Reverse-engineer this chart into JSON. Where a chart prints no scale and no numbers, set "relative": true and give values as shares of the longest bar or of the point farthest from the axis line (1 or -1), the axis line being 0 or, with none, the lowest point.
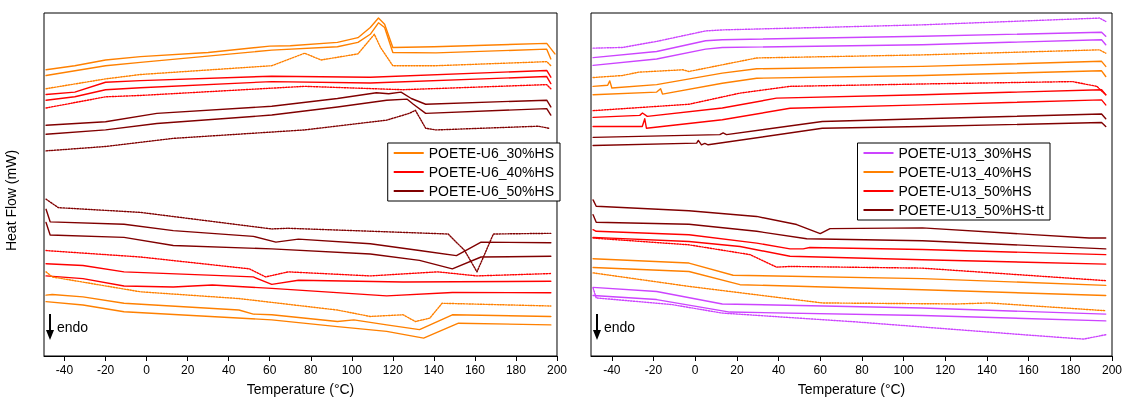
{
  "chart_data": [
    {
      "type": "line",
      "relative": true,
      "xlabel": "Temperature (°C)",
      "ylabel": "Heat Flow (mW)",
      "xlim": [
        -50,
        200
      ],
      "xticks": [
        -40,
        -20,
        0,
        20,
        40,
        60,
        80,
        100,
        120,
        140,
        160,
        180,
        200
      ],
      "legend": "right",
      "grid": false,
      "annotations": [
        "endo"
      ],
      "series": [
        {
          "name": "POETE-U6_30%HS",
          "color": "#ff8000",
          "line_style": "solid",
          "x": [
            -49,
            -35,
            -20,
            -3,
            30,
            60,
            70,
            93,
            103,
            109,
            113,
            116,
            120,
            140,
            195,
            199
          ],
          "values": [
            0.847,
            0.859,
            0.876,
            0.886,
            0.898,
            0.917,
            0.918,
            0.928,
            0.942,
            0.972,
            1.0,
            0.982,
            0.913,
            0.915,
            0.925,
            0.894
          ]
        },
        {
          "color": "#ff8000",
          "line_style": "solid",
          "x": [
            -49,
            -20,
            -3,
            61,
            93,
            103,
            109,
            113,
            116,
            120,
            141,
            195,
            197
          ],
          "values": [
            0.83,
            0.859,
            0.869,
            0.905,
            0.915,
            0.928,
            0.952,
            0.986,
            0.972,
            0.898,
            0.897,
            0.908,
            0.879
          ]
        },
        {
          "color": "#ff8000",
          "line_style": "dotted",
          "x": [
            -49,
            -20,
            -3,
            61,
            77,
            85,
            103,
            111,
            114,
            120,
            141,
            195,
            197
          ],
          "values": [
            0.791,
            0.82,
            0.833,
            0.859,
            0.896,
            0.876,
            0.894,
            0.952,
            0.913,
            0.859,
            0.859,
            0.871,
            0.859
          ]
        },
        {
          "name": "POETE-U6_40%HS",
          "color": "#ff0000",
          "line_style": "solid",
          "x": [
            -49,
            -35,
            -20,
            -3,
            61,
            109,
            195,
            197
          ],
          "values": [
            0.774,
            0.781,
            0.81,
            0.815,
            0.828,
            0.825,
            0.845,
            0.825
          ]
        },
        {
          "color": "#ff0000",
          "line_style": "solid",
          "x": [
            -49,
            -35,
            -20,
            -3,
            61,
            109,
            195,
            197
          ],
          "values": [
            0.757,
            0.767,
            0.788,
            0.794,
            0.812,
            0.808,
            0.827,
            0.806
          ]
        },
        {
          "color": "#ff0000",
          "line_style": "dotted",
          "x": [
            -49,
            -20,
            -3,
            77,
            125,
            195,
            197
          ],
          "values": [
            0.734,
            0.767,
            0.771,
            0.798,
            0.788,
            0.803,
            0.791
          ]
        },
        {
          "name": "POETE-U6_50%HS",
          "color": "#800000",
          "line_style": "solid",
          "x": [
            -49,
            -20,
            5,
            61,
            93,
            112,
            118,
            124,
            129,
            136,
            195,
            197
          ],
          "values": [
            0.683,
            0.693,
            0.718,
            0.739,
            0.762,
            0.779,
            0.776,
            0.781,
            0.762,
            0.745,
            0.757,
            0.737
          ]
        },
        {
          "color": "#800000",
          "line_style": "solid",
          "x": [
            -49,
            -20,
            5,
            61,
            93,
            117,
            127,
            130,
            136,
            195,
            197
          ],
          "values": [
            0.656,
            0.669,
            0.688,
            0.713,
            0.737,
            0.757,
            0.76,
            0.745,
            0.718,
            0.732,
            0.713
          ]
        },
        {
          "color": "#800000",
          "line_style": "dotted",
          "x": [
            -49,
            -20,
            13,
            77,
            117,
            128,
            131,
            136,
            141,
            191,
            196
          ],
          "values": [
            0.607,
            0.62,
            0.644,
            0.669,
            0.698,
            0.718,
            0.727,
            0.674,
            0.669,
            0.68,
            0.674
          ]
        },
        {
          "color": "#800000",
          "line_style": "dotted",
          "x": [
            -49,
            -43,
            -3,
            61,
            69,
            147,
            155,
            161,
            169,
            197
          ],
          "values": [
            0.464,
            0.439,
            0.425,
            0.376,
            0.378,
            0.361,
            0.312,
            0.249,
            0.361,
            0.363
          ]
        },
        {
          "color": "#800000",
          "line_style": "solid",
          "x": [
            -49,
            -47,
            -11,
            13,
            52,
            63,
            74,
            109,
            133,
            151,
            163,
            197
          ],
          "values": [
            0.434,
            0.397,
            0.39,
            0.371,
            0.354,
            0.337,
            0.346,
            0.332,
            0.312,
            0.297,
            0.337,
            0.335
          ]
        },
        {
          "color": "#800000",
          "line_style": "solid",
          "x": [
            -49,
            -47,
            -11,
            13,
            61,
            109,
            133,
            149,
            163,
            197
          ],
          "values": [
            0.395,
            0.358,
            0.351,
            0.327,
            0.317,
            0.302,
            0.283,
            0.258,
            0.293,
            0.295
          ]
        },
        {
          "color": "#ff0000",
          "line_style": "dotted",
          "x": [
            -49,
            -3,
            50,
            58,
            69,
            109,
            142,
            161,
            197
          ],
          "values": [
            0.312,
            0.293,
            0.258,
            0.234,
            0.249,
            0.237,
            0.249,
            0.237,
            0.244
          ]
        },
        {
          "color": "#ff0000",
          "line_style": "solid",
          "x": [
            -49,
            -31,
            -11,
            52,
            61,
            74,
            125,
            197
          ],
          "values": [
            0.273,
            0.268,
            0.249,
            0.234,
            0.212,
            0.224,
            0.219,
            0.221
          ]
        },
        {
          "color": "#ff0000",
          "line_style": "solid",
          "x": [
            -49,
            -31,
            -11,
            13,
            32,
            61,
            117,
            149,
            197
          ],
          "values": [
            0.237,
            0.229,
            0.207,
            0.204,
            0.21,
            0.2,
            0.178,
            0.188,
            0.187
          ]
        },
        {
          "color": "#ff8000",
          "line_style": "dotted",
          "x": [
            -49,
            -46,
            -3,
            45,
            93,
            109,
            125,
            131,
            138,
            144,
            197
          ],
          "values": [
            0.249,
            0.234,
            0.19,
            0.17,
            0.136,
            0.117,
            0.122,
            0.102,
            0.112,
            0.156,
            0.148
          ]
        },
        {
          "color": "#ff8000",
          "line_style": "solid",
          "x": [
            -49,
            -46,
            -31,
            -11,
            45,
            52,
            61,
            93,
            101,
            117,
            133,
            149,
            197
          ],
          "values": [
            0.18,
            0.182,
            0.175,
            0.156,
            0.136,
            0.124,
            0.122,
            0.102,
            0.107,
            0.092,
            0.078,
            0.122,
            0.117
          ]
        },
        {
          "color": "#ff8000",
          "line_style": "solid",
          "x": [
            -49,
            -31,
            -11,
            61,
            93,
            117,
            135,
            152,
            197
          ],
          "values": [
            0.161,
            0.151,
            0.131,
            0.107,
            0.087,
            0.073,
            0.053,
            0.097,
            0.092
          ]
        }
      ]
    },
    {
      "type": "line",
      "relative": true,
      "xlabel": "Temperature (°C)",
      "xlim": [
        -50,
        200
      ],
      "xticks": [
        -40,
        -20,
        0,
        20,
        40,
        60,
        80,
        100,
        120,
        140,
        160,
        180,
        200
      ],
      "legend": "right",
      "grid": false,
      "annotations": [
        "endo"
      ],
      "series": [
        {
          "color": "#cc44ff",
          "line_style": "dotted",
          "x": [
            -49,
            -35,
            -18.5,
            5,
            13,
            109,
            194,
            197
          ],
          "values": [
            0.911,
            0.913,
            0.931,
            0.962,
            0.965,
            0.98,
            1.0,
            0.99
          ]
        },
        {
          "name": "POETE-U13_30%HS",
          "color": "#cc44ff",
          "line_style": "solid",
          "x": [
            -49,
            -18.5,
            5,
            13,
            109,
            195,
            197
          ],
          "values": [
            0.883,
            0.901,
            0.933,
            0.936,
            0.946,
            0.958,
            0.946
          ]
        },
        {
          "color": "#cc44ff",
          "line_style": "solid",
          "x": [
            -49,
            -18.5,
            5,
            13,
            109,
            195,
            197
          ],
          "values": [
            0.86,
            0.879,
            0.908,
            0.913,
            0.921,
            0.936,
            0.921
          ]
        },
        {
          "color": "#ff8000",
          "line_style": "dotted",
          "x": [
            -49,
            -35,
            -27,
            -6,
            -3,
            29.5,
            109,
            194,
            197
          ],
          "values": [
            0.824,
            0.83,
            0.84,
            0.847,
            0.842,
            0.882,
            0.891,
            0.906,
            0.896
          ]
        },
        {
          "name": "POETE-U13_40%HS",
          "color": "#ff8000",
          "line_style": "solid",
          "x": [
            -49,
            -42,
            -41,
            -40,
            -18.5,
            13,
            29.5,
            109,
            195,
            197
          ],
          "values": [
            0.798,
            0.801,
            0.814,
            0.793,
            0.803,
            0.837,
            0.85,
            0.857,
            0.872,
            0.857
          ]
        },
        {
          "color": "#ff8000",
          "line_style": "solid",
          "x": [
            -49,
            -18.5,
            -16.6,
            -15.7,
            13,
            29.5,
            109,
            195,
            197
          ],
          "values": [
            0.773,
            0.781,
            0.791,
            0.775,
            0.807,
            0.822,
            0.83,
            0.844,
            0.827
          ]
        },
        {
          "color": "#ff0000",
          "line_style": "dotted",
          "x": [
            -49,
            -3,
            21.5,
            45.5,
            109,
            181,
            192.7,
            197
          ],
          "values": [
            0.726,
            0.745,
            0.778,
            0.798,
            0.805,
            0.812,
            0.798,
            0.773
          ]
        },
        {
          "name": "POETE-U13_50%HS",
          "color": "#ff0000",
          "line_style": "solid",
          "x": [
            -49,
            -26.6,
            -25.3,
            -23,
            13,
            39,
            109,
            195,
            197
          ],
          "values": [
            0.706,
            0.712,
            0.719,
            0.709,
            0.734,
            0.763,
            0.773,
            0.788,
            0.773
          ]
        },
        {
          "color": "#ff0000",
          "line_style": "solid",
          "x": [
            -49,
            -25.4,
            -24.2,
            -23.4,
            13,
            45.5,
            109,
            195,
            197
          ],
          "values": [
            0.679,
            0.679,
            0.702,
            0.674,
            0.699,
            0.733,
            0.743,
            0.758,
            0.743
          ]
        },
        {
          "name": "POETE-U13_50%HS-tt",
          "color": "#800000",
          "line_style": "solid",
          "x": [
            -49,
            11.8,
            13.4,
            15,
            61,
            109,
            195,
            197
          ],
          "values": [
            0.647,
            0.655,
            0.66,
            0.655,
            0.694,
            0.702,
            0.716,
            0.702
          ]
        },
        {
          "color": "#800000",
          "line_style": "solid",
          "x": [
            -49,
            0.7,
            1.5,
            3,
            4.6,
            6.2,
            61,
            109,
            195,
            197
          ],
          "values": [
            0.623,
            0.63,
            0.638,
            0.625,
            0.629,
            0.625,
            0.674,
            0.679,
            0.691,
            0.679
          ]
        },
        {
          "color": "#800000",
          "line_style": "solid",
          "x": [
            -49,
            -47.5,
            -3,
            29.5,
            48.7,
            60,
            64.7,
            109,
            189,
            197
          ],
          "values": [
            0.462,
            0.443,
            0.43,
            0.413,
            0.389,
            0.362,
            0.377,
            0.379,
            0.349,
            0.349
          ]
        },
        {
          "color": "#800000",
          "line_style": "solid",
          "x": [
            -49,
            -47.5,
            -3,
            29.5,
            53.5,
            109,
            197
          ],
          "values": [
            0.418,
            0.396,
            0.39,
            0.369,
            0.347,
            0.341,
            0.317
          ]
        },
        {
          "color": "#ff0000",
          "line_style": "solid",
          "x": [
            -49,
            -47.5,
            -3,
            29.5,
            45.5,
            51.8,
            55,
            109,
            197
          ],
          "values": [
            0.374,
            0.369,
            0.359,
            0.334,
            0.317,
            0.317,
            0.321,
            0.315,
            0.3
          ]
        },
        {
          "color": "#ff0000",
          "line_style": "solid",
          "x": [
            -49,
            -3,
            21.5,
            45.5,
            109,
            197
          ],
          "values": [
            0.351,
            0.339,
            0.324,
            0.295,
            0.285,
            0.272
          ]
        },
        {
          "color": "#ff0000",
          "line_style": "dotted",
          "x": [
            -49,
            -3,
            26.3,
            39,
            45.5,
            109,
            197
          ],
          "values": [
            0.349,
            0.329,
            0.3,
            0.263,
            0.265,
            0.26,
            0.223
          ]
        },
        {
          "color": "#ff8000",
          "line_style": "solid",
          "x": [
            -49,
            -3,
            18.2,
            109,
            197
          ],
          "values": [
            0.288,
            0.275,
            0.239,
            0.229,
            0.209
          ]
        },
        {
          "color": "#ff8000",
          "line_style": "solid",
          "x": [
            -49,
            -3,
            21.5,
            109,
            197
          ],
          "values": [
            0.262,
            0.25,
            0.211,
            0.196,
            0.179
          ]
        },
        {
          "color": "#ff8000",
          "line_style": "dotted",
          "x": [
            -49,
            -3,
            61,
            125.5,
            141,
            197
          ],
          "values": [
            0.246,
            0.206,
            0.157,
            0.154,
            0.157,
            0.134
          ]
        },
        {
          "color": "#cc44ff",
          "line_style": "solid",
          "x": [
            -49,
            -18.5,
            13,
            109,
            197
          ],
          "values": [
            0.203,
            0.191,
            0.154,
            0.142,
            0.124
          ]
        },
        {
          "color": "#cc44ff",
          "line_style": "solid",
          "x": [
            -49,
            -18.5,
            16.6,
            109,
            197
          ],
          "values": [
            0.179,
            0.167,
            0.13,
            0.12,
            0.104
          ]
        },
        {
          "color": "#cc44ff",
          "line_style": "dotted",
          "x": [
            -49,
            -47.5,
            -11,
            13,
            77,
            157.5,
            186.3,
            197
          ],
          "values": [
            0.201,
            0.172,
            0.152,
            0.127,
            0.101,
            0.063,
            0.05,
            0.063
          ]
        }
      ]
    }
  ]
}
